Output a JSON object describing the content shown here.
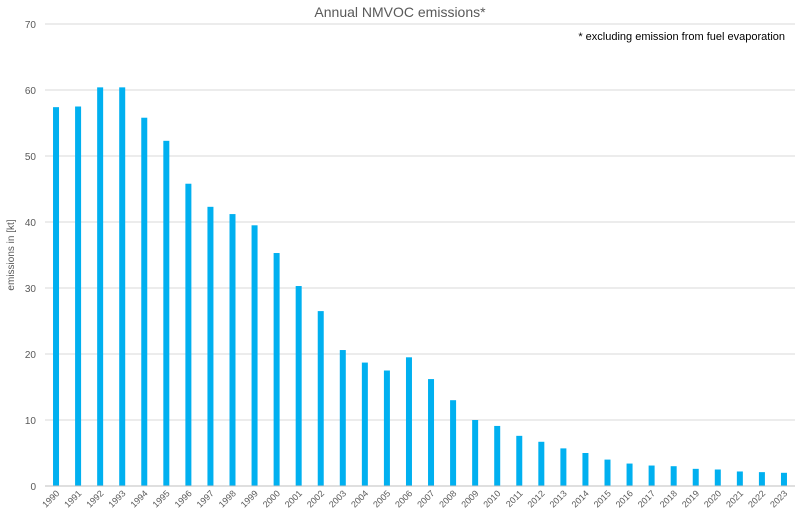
{
  "chart_data": {
    "type": "bar",
    "title": "Annual NMVOC emissions*",
    "annotation": "* excluding emission from fuel evaporation",
    "xlabel": "",
    "ylabel": "emissions in [kt]",
    "ylim": [
      0,
      70
    ],
    "yticks": [
      0,
      10,
      20,
      30,
      40,
      50,
      60,
      70
    ],
    "grid": true,
    "bar_color": "#00B0F0",
    "categories": [
      "1990",
      "1991",
      "1992",
      "1993",
      "1994",
      "1995",
      "1996",
      "1997",
      "1998",
      "1999",
      "2000",
      "2001",
      "2002",
      "2003",
      "2004",
      "2005",
      "2006",
      "2007",
      "2008",
      "2009",
      "2010",
      "2011",
      "2012",
      "2013",
      "2014",
      "2015",
      "2016",
      "2017",
      "2018",
      "2019",
      "2020",
      "2021",
      "2022",
      "2023"
    ],
    "values": [
      57.4,
      57.5,
      60.4,
      60.4,
      55.8,
      52.3,
      45.8,
      42.3,
      41.2,
      39.5,
      35.3,
      30.3,
      26.5,
      20.6,
      18.7,
      17.5,
      19.5,
      16.2,
      13.0,
      10.0,
      9.1,
      7.6,
      6.7,
      5.7,
      5.0,
      4.0,
      3.4,
      3.1,
      3.0,
      2.6,
      2.5,
      2.2,
      2.1,
      2.0
    ]
  }
}
